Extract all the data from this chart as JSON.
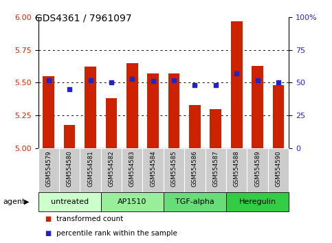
{
  "title": "GDS4361 / 7961097",
  "samples": [
    "GSM554579",
    "GSM554580",
    "GSM554581",
    "GSM554582",
    "GSM554583",
    "GSM554584",
    "GSM554585",
    "GSM554586",
    "GSM554587",
    "GSM554588",
    "GSM554589",
    "GSM554590"
  ],
  "transformed_count": [
    5.55,
    5.18,
    5.62,
    5.38,
    5.65,
    5.57,
    5.57,
    5.33,
    5.3,
    5.97,
    5.63,
    5.48
  ],
  "percentile_rank": [
    52,
    45,
    52,
    50,
    53,
    51,
    52,
    48,
    48,
    57,
    52,
    50
  ],
  "ylim_left": [
    5.0,
    6.0
  ],
  "ylim_right": [
    0,
    100
  ],
  "yticks_left": [
    5.0,
    5.25,
    5.5,
    5.75,
    6.0
  ],
  "yticks_right": [
    0,
    25,
    50,
    75,
    100
  ],
  "bar_color": "#cc2200",
  "dot_color": "#2222cc",
  "groups": [
    {
      "label": "untreated",
      "start": 0,
      "end": 3,
      "color": "#ccffcc"
    },
    {
      "label": "AP1510",
      "start": 3,
      "end": 6,
      "color": "#99ee99"
    },
    {
      "label": "TGF-alpha",
      "start": 6,
      "end": 9,
      "color": "#66dd77"
    },
    {
      "label": "Heregulin",
      "start": 9,
      "end": 12,
      "color": "#33cc44"
    }
  ],
  "legend_transformed": "transformed count",
  "legend_percentile": "percentile rank within the sample",
  "tick_label_color_left": "#cc2200",
  "tick_label_color_right": "#2222cc",
  "bg_color": "#ffffff",
  "sample_bg_color": "#cccccc"
}
